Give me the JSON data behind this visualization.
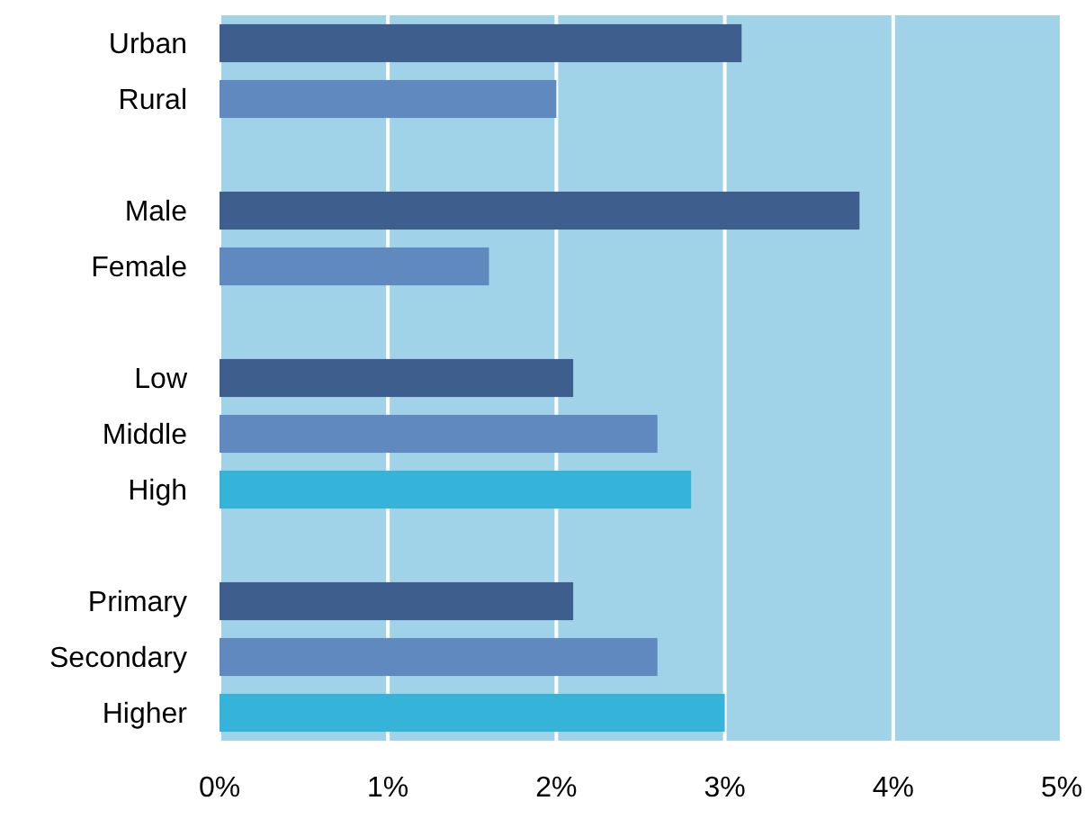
{
  "chart_data": {
    "type": "bar",
    "orientation": "horizontal",
    "categories": [
      "Urban",
      "Rural",
      null,
      "Male",
      "Female",
      null,
      "Low",
      "Middle",
      "High",
      null,
      "Primary",
      "Secondary",
      "Higher"
    ],
    "values": [
      3.1,
      2.0,
      null,
      3.8,
      1.6,
      null,
      2.1,
      2.6,
      2.8,
      null,
      2.1,
      2.6,
      3.0
    ],
    "colors": [
      "#3e5f8d",
      "#5f89bf",
      null,
      "#3e5f8d",
      "#5f89bf",
      null,
      "#3e5f8d",
      "#5f89bf",
      "#36b3d8",
      null,
      "#3e5f8d",
      "#5f89bf",
      "#36b3d8"
    ],
    "xlim": [
      0,
      5
    ],
    "xticks": [
      {
        "value": 0,
        "label": "0%"
      },
      {
        "value": 1,
        "label": "1%"
      },
      {
        "value": 2,
        "label": "2%"
      },
      {
        "value": 3,
        "label": "3%"
      },
      {
        "value": 4,
        "label": "4%"
      },
      {
        "value": 5,
        "label": "5%"
      }
    ],
    "grid": "x"
  }
}
